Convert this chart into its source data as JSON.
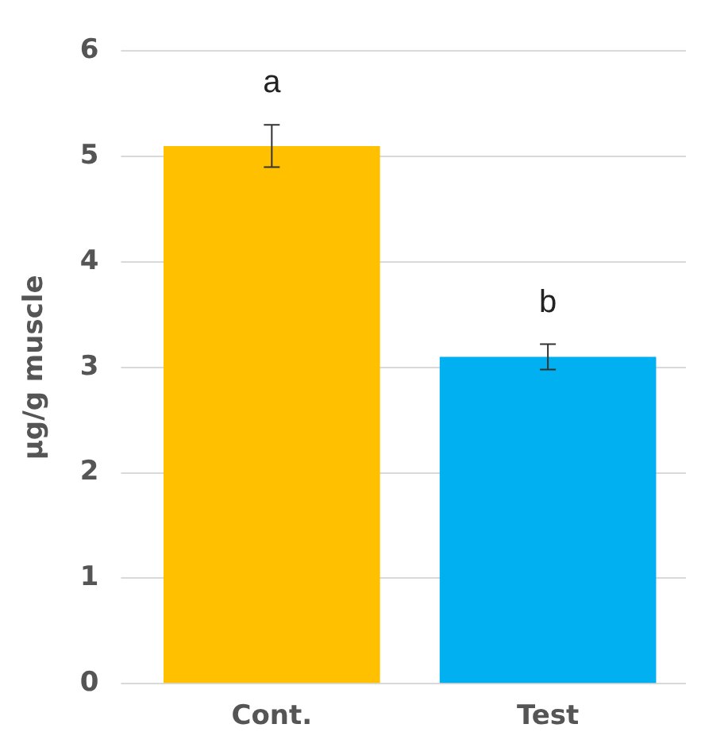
{
  "chart_data": {
    "type": "bar",
    "ylabel": "µg/g muscle",
    "categories": [
      "Cont.",
      "Test"
    ],
    "values": [
      5.1,
      3.1
    ],
    "colors": [
      "#ffc000",
      "#00b0f0"
    ],
    "errors": [
      0.2,
      0.12
    ],
    "ylim": [
      0,
      6
    ],
    "yticks": [
      0,
      1,
      2,
      3,
      4,
      5,
      6
    ],
    "grid": "y",
    "legend": false,
    "annotations": [
      "a",
      "b"
    ]
  }
}
